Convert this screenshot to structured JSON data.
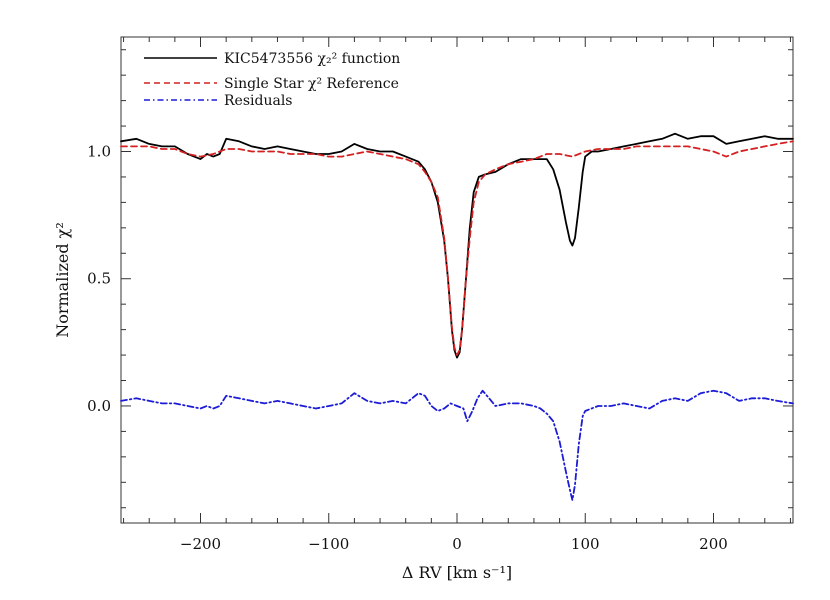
{
  "chart_data": {
    "type": "line",
    "title": "",
    "xlabel": "Δ RV [km s⁻¹]",
    "ylabel": "Normalized χ²",
    "xlim": [
      -262,
      262
    ],
    "ylim": [
      -0.46,
      1.45
    ],
    "x_ticks": [
      -200,
      -100,
      0,
      100,
      200
    ],
    "x_tick_labels": [
      "−200",
      "−100",
      "0",
      "100",
      "200"
    ],
    "y_ticks": [
      0.0,
      0.5,
      1.0
    ],
    "y_tick_labels": [
      "0.0",
      "0.5",
      "1.0"
    ],
    "grid": false,
    "legend_position": "top-left",
    "series": [
      {
        "name": "KIC5473556 χ₂² function",
        "color": "#000000",
        "style": "solid",
        "points": [
          [
            -262,
            1.04
          ],
          [
            -250,
            1.05
          ],
          [
            -240,
            1.03
          ],
          [
            -230,
            1.02
          ],
          [
            -220,
            1.02
          ],
          [
            -210,
            0.99
          ],
          [
            -200,
            0.97
          ],
          [
            -195,
            0.99
          ],
          [
            -190,
            0.98
          ],
          [
            -185,
            0.99
          ],
          [
            -180,
            1.05
          ],
          [
            -170,
            1.04
          ],
          [
            -160,
            1.02
          ],
          [
            -150,
            1.01
          ],
          [
            -140,
            1.02
          ],
          [
            -130,
            1.01
          ],
          [
            -120,
            1.0
          ],
          [
            -110,
            0.99
          ],
          [
            -100,
            0.99
          ],
          [
            -90,
            1.0
          ],
          [
            -80,
            1.03
          ],
          [
            -70,
            1.01
          ],
          [
            -60,
            1.0
          ],
          [
            -50,
            1.0
          ],
          [
            -40,
            0.98
          ],
          [
            -30,
            0.96
          ],
          [
            -25,
            0.93
          ],
          [
            -20,
            0.88
          ],
          [
            -15,
            0.8
          ],
          [
            -10,
            0.65
          ],
          [
            -7,
            0.5
          ],
          [
            -4,
            0.3
          ],
          [
            -2,
            0.22
          ],
          [
            0,
            0.19
          ],
          [
            2,
            0.21
          ],
          [
            4,
            0.3
          ],
          [
            7,
            0.5
          ],
          [
            10,
            0.7
          ],
          [
            13,
            0.84
          ],
          [
            17,
            0.9
          ],
          [
            22,
            0.91
          ],
          [
            30,
            0.92
          ],
          [
            40,
            0.95
          ],
          [
            50,
            0.97
          ],
          [
            60,
            0.97
          ],
          [
            70,
            0.97
          ],
          [
            75,
            0.93
          ],
          [
            80,
            0.85
          ],
          [
            85,
            0.72
          ],
          [
            88,
            0.65
          ],
          [
            90,
            0.63
          ],
          [
            92,
            0.66
          ],
          [
            95,
            0.78
          ],
          [
            98,
            0.92
          ],
          [
            100,
            0.98
          ],
          [
            105,
            1.0
          ],
          [
            110,
            1.0
          ],
          [
            120,
            1.01
          ],
          [
            130,
            1.02
          ],
          [
            140,
            1.03
          ],
          [
            150,
            1.04
          ],
          [
            160,
            1.05
          ],
          [
            170,
            1.07
          ],
          [
            180,
            1.05
          ],
          [
            190,
            1.06
          ],
          [
            200,
            1.06
          ],
          [
            210,
            1.03
          ],
          [
            220,
            1.04
          ],
          [
            230,
            1.05
          ],
          [
            240,
            1.06
          ],
          [
            250,
            1.05
          ],
          [
            262,
            1.05
          ]
        ]
      },
      {
        "name": "Single Star χ² Reference",
        "color": "#d42020",
        "style": "dashed",
        "points": [
          [
            -262,
            1.02
          ],
          [
            -250,
            1.02
          ],
          [
            -240,
            1.02
          ],
          [
            -230,
            1.01
          ],
          [
            -220,
            1.01
          ],
          [
            -210,
            0.99
          ],
          [
            -200,
            0.98
          ],
          [
            -190,
            0.99
          ],
          [
            -180,
            1.01
          ],
          [
            -170,
            1.01
          ],
          [
            -160,
            1.0
          ],
          [
            -150,
            1.0
          ],
          [
            -140,
            1.0
          ],
          [
            -130,
            0.99
          ],
          [
            -120,
            0.99
          ],
          [
            -110,
            0.99
          ],
          [
            -100,
            0.98
          ],
          [
            -90,
            0.98
          ],
          [
            -80,
            0.99
          ],
          [
            -70,
            1.0
          ],
          [
            -60,
            0.99
          ],
          [
            -50,
            0.98
          ],
          [
            -40,
            0.97
          ],
          [
            -30,
            0.95
          ],
          [
            -25,
            0.92
          ],
          [
            -20,
            0.88
          ],
          [
            -15,
            0.82
          ],
          [
            -10,
            0.66
          ],
          [
            -7,
            0.5
          ],
          [
            -4,
            0.31
          ],
          [
            -2,
            0.23
          ],
          [
            0,
            0.2
          ],
          [
            2,
            0.22
          ],
          [
            4,
            0.3
          ],
          [
            7,
            0.5
          ],
          [
            10,
            0.66
          ],
          [
            13,
            0.8
          ],
          [
            17,
            0.88
          ],
          [
            22,
            0.91
          ],
          [
            30,
            0.93
          ],
          [
            40,
            0.95
          ],
          [
            50,
            0.96
          ],
          [
            60,
            0.97
          ],
          [
            70,
            0.99
          ],
          [
            80,
            0.99
          ],
          [
            90,
            0.98
          ],
          [
            100,
            1.0
          ],
          [
            110,
            1.01
          ],
          [
            120,
            1.01
          ],
          [
            130,
            1.01
          ],
          [
            140,
            1.02
          ],
          [
            150,
            1.02
          ],
          [
            160,
            1.02
          ],
          [
            170,
            1.02
          ],
          [
            180,
            1.02
          ],
          [
            190,
            1.01
          ],
          [
            200,
            1.0
          ],
          [
            210,
            0.98
          ],
          [
            220,
            1.0
          ],
          [
            230,
            1.01
          ],
          [
            240,
            1.02
          ],
          [
            250,
            1.03
          ],
          [
            262,
            1.04
          ]
        ]
      },
      {
        "name": "Residuals",
        "color": "#1c1cd6",
        "style": "dashdot",
        "points": [
          [
            -262,
            0.02
          ],
          [
            -250,
            0.03
          ],
          [
            -240,
            0.02
          ],
          [
            -230,
            0.01
          ],
          [
            -220,
            0.01
          ],
          [
            -210,
            0.0
          ],
          [
            -200,
            -0.01
          ],
          [
            -195,
            0.0
          ],
          [
            -190,
            -0.01
          ],
          [
            -185,
            0.0
          ],
          [
            -180,
            0.04
          ],
          [
            -170,
            0.03
          ],
          [
            -160,
            0.02
          ],
          [
            -150,
            0.01
          ],
          [
            -140,
            0.02
          ],
          [
            -130,
            0.01
          ],
          [
            -120,
            0.0
          ],
          [
            -110,
            -0.01
          ],
          [
            -100,
            0.0
          ],
          [
            -90,
            0.01
          ],
          [
            -80,
            0.05
          ],
          [
            -70,
            0.02
          ],
          [
            -60,
            0.01
          ],
          [
            -50,
            0.02
          ],
          [
            -40,
            0.01
          ],
          [
            -30,
            0.05
          ],
          [
            -25,
            0.04
          ],
          [
            -20,
            0.0
          ],
          [
            -15,
            -0.02
          ],
          [
            -10,
            -0.01
          ],
          [
            -5,
            0.01
          ],
          [
            0,
            0.0
          ],
          [
            5,
            -0.01
          ],
          [
            8,
            -0.06
          ],
          [
            12,
            -0.02
          ],
          [
            16,
            0.03
          ],
          [
            20,
            0.06
          ],
          [
            25,
            0.03
          ],
          [
            30,
            0.0
          ],
          [
            40,
            0.01
          ],
          [
            50,
            0.01
          ],
          [
            60,
            0.0
          ],
          [
            65,
            -0.01
          ],
          [
            70,
            -0.03
          ],
          [
            75,
            -0.06
          ],
          [
            80,
            -0.14
          ],
          [
            85,
            -0.26
          ],
          [
            88,
            -0.33
          ],
          [
            90,
            -0.37
          ],
          [
            92,
            -0.31
          ],
          [
            95,
            -0.15
          ],
          [
            98,
            -0.04
          ],
          [
            100,
            -0.02
          ],
          [
            110,
            0.0
          ],
          [
            120,
            0.0
          ],
          [
            130,
            0.01
          ],
          [
            140,
            0.0
          ],
          [
            150,
            -0.01
          ],
          [
            160,
            0.02
          ],
          [
            170,
            0.03
          ],
          [
            180,
            0.02
          ],
          [
            190,
            0.05
          ],
          [
            200,
            0.06
          ],
          [
            210,
            0.05
          ],
          [
            220,
            0.02
          ],
          [
            230,
            0.03
          ],
          [
            240,
            0.03
          ],
          [
            250,
            0.02
          ],
          [
            262,
            0.01
          ]
        ]
      }
    ]
  }
}
